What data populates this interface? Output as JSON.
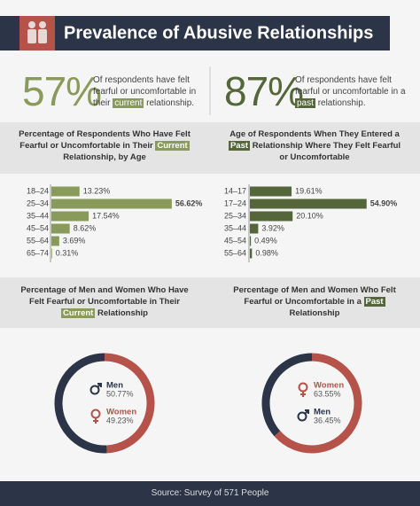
{
  "header": {
    "title": "Prevalence of Abusive Relationships"
  },
  "stats": [
    {
      "value": 57,
      "label": "57%",
      "color": "#8a9a5b",
      "text": [
        "Of respondents have felt fearful or uncomfortable in their",
        "current",
        "relationship."
      ]
    },
    {
      "value": 87,
      "label": "87%",
      "color": "#55663a",
      "text": [
        "Of respondents have felt fearful or uncomfortable in a",
        "past",
        "relationship."
      ]
    }
  ],
  "chart_data": [
    {
      "type": "bar",
      "orientation": "horizontal",
      "title": [
        "Percentage of Respondents Who Have Felt Fearful or Uncomfortable in Their",
        "Current",
        "Relationship, by Age"
      ],
      "categories": [
        "18–24",
        "25–34",
        "35–44",
        "45–54",
        "55–64",
        "65–74"
      ],
      "values": [
        13.23,
        56.62,
        17.54,
        8.62,
        3.69,
        0.31
      ],
      "value_labels": [
        "13.23%",
        "56.62%",
        "17.54%",
        "8.62%",
        "3.69%",
        "0.31%"
      ],
      "color": "#8a9a5b"
    },
    {
      "type": "bar",
      "orientation": "horizontal",
      "title": [
        "Age of Respondents When They Entered a",
        "Past",
        "Relationship Where They Felt Fearful or Uncomfortable"
      ],
      "categories": [
        "14–17",
        "17–24",
        "25–34",
        "35–44",
        "45–54",
        "55–64"
      ],
      "values": [
        19.61,
        54.9,
        20.1,
        3.92,
        0.49,
        0.98
      ],
      "value_labels": [
        "19.61%",
        "54.90%",
        "20.10%",
        "3.92%",
        "0.49%",
        "0.98%"
      ],
      "color": "#55663a"
    },
    {
      "type": "pie",
      "donut": true,
      "direction": "ccw",
      "title": [
        "Percentage of Men and Women Who Have Felt Fearful or Uncomfortable in Their",
        "Current",
        "Relationship"
      ],
      "categories": [
        "Men",
        "Women"
      ],
      "values": [
        50.77,
        49.23
      ],
      "value_labels": [
        "50.77%",
        "49.23%"
      ],
      "colors": [
        "#2b3547",
        "#b5524a"
      ],
      "markers": [
        "male",
        "female"
      ],
      "highlight": "#8a9a5b"
    },
    {
      "type": "pie",
      "donut": true,
      "direction": "cw",
      "title": [
        "Percentage of Men and Women Who Felt Fearful or Uncomfortable in a",
        "Past",
        "Relationship"
      ],
      "categories": [
        "Women",
        "Men"
      ],
      "values": [
        63.55,
        36.45
      ],
      "value_labels": [
        "63.55%",
        "36.45%"
      ],
      "colors": [
        "#b5524a",
        "#2b3547"
      ],
      "markers": [
        "female",
        "male"
      ],
      "highlight": "#55663a"
    }
  ],
  "source": "Source: Survey of 571 People"
}
